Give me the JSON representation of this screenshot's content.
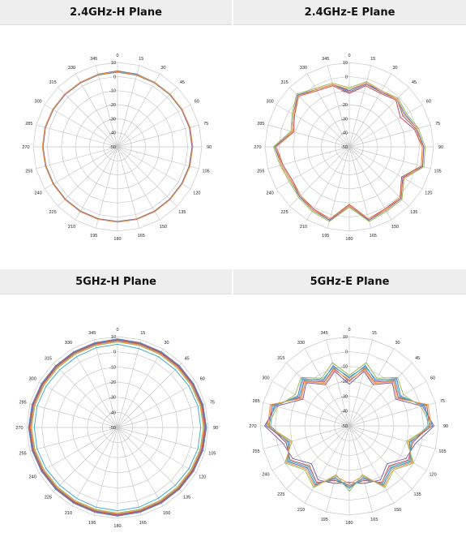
{
  "chart_data": [
    {
      "type": "polar-line",
      "title": "2.4GHz-H Plane",
      "angles": [
        0,
        15,
        30,
        45,
        60,
        75,
        90,
        105,
        120,
        135,
        150,
        165,
        180,
        195,
        210,
        225,
        240,
        255,
        270,
        285,
        300,
        315,
        330,
        345
      ],
      "radial_ticks": [
        10,
        0,
        -10,
        -20,
        -30,
        -40,
        -50
      ],
      "rlim": [
        -50,
        10
      ],
      "angle_labels": [
        "0",
        "15",
        "30",
        "45",
        "60",
        "75",
        "90",
        "105",
        "120",
        "135",
        "150",
        "165",
        "180",
        "195",
        "210",
        "225",
        "240",
        "255",
        "270",
        "285",
        "300",
        "315",
        "330",
        "345"
      ],
      "radial_labels": [
        "10",
        "0",
        "-10",
        "-20",
        "-30",
        "-40",
        "-50"
      ],
      "series": [
        {
          "color": "#4f81bd",
          "values": [
            4,
            3.5,
            3,
            3,
            3.2,
            3.5,
            3.5,
            3.3,
            3,
            3,
            3.2,
            3.4,
            3.5,
            3.4,
            3.2,
            3,
            3,
            3.2,
            3.4,
            3.5,
            3.3,
            3.1,
            3,
            3.5
          ]
        },
        {
          "color": "#c0504d",
          "values": [
            3.5,
            3,
            2.8,
            2.8,
            3,
            3.2,
            3.3,
            3,
            2.8,
            2.8,
            3,
            3.2,
            3.3,
            3.1,
            3,
            2.8,
            2.8,
            3,
            3.2,
            3.2,
            3,
            2.9,
            2.8,
            3.2
          ]
        },
        {
          "color": "#9bbb59",
          "values": [
            3,
            2.6,
            2.4,
            2.5,
            2.7,
            2.9,
            3,
            2.8,
            2.6,
            2.5,
            2.7,
            3,
            3,
            2.9,
            2.7,
            2.5,
            2.5,
            2.7,
            3,
            3,
            2.8,
            2.6,
            2.5,
            2.8
          ]
        },
        {
          "color": "#8064a2",
          "values": [
            3.2,
            2.8,
            2.6,
            2.6,
            2.8,
            3,
            3.1,
            2.9,
            2.7,
            2.6,
            2.8,
            3.1,
            3.2,
            3,
            2.8,
            2.6,
            2.6,
            2.8,
            3.1,
            3.1,
            2.9,
            2.7,
            2.6,
            3
          ]
        },
        {
          "color": "#f79646",
          "values": [
            3.4,
            3,
            2.9,
            3,
            3.2,
            3.5,
            3.6,
            3.4,
            3.1,
            3,
            3.2,
            3.5,
            3.6,
            3.4,
            3.2,
            3,
            3,
            3.2,
            3.5,
            3.5,
            3.3,
            3.1,
            3,
            3.3
          ]
        }
      ]
    },
    {
      "type": "polar-line",
      "title": "2.4GHz-E Plane",
      "angles": [
        0,
        15,
        30,
        45,
        60,
        75,
        90,
        105,
        120,
        135,
        150,
        165,
        180,
        195,
        210,
        225,
        240,
        255,
        270,
        285,
        300,
        315,
        330,
        345
      ],
      "radial_ticks": [
        10,
        0,
        -10,
        -20,
        -30,
        -40,
        -50
      ],
      "rlim": [
        -50,
        10
      ],
      "angle_labels": [
        "0",
        "15",
        "30",
        "45",
        "60",
        "75",
        "90",
        "105",
        "120",
        "135",
        "150",
        "165",
        "180",
        "195",
        "210",
        "225",
        "240",
        "255",
        "270",
        "285",
        "300",
        "315",
        "330",
        "345"
      ],
      "radial_labels": [
        "10",
        "0",
        "-10",
        "-20",
        "-30",
        "-40",
        "-50"
      ],
      "series": [
        {
          "color": "#4f81bd",
          "values": [
            -10,
            -3,
            -5,
            -2,
            -4,
            0,
            3,
            4,
            -6,
            2,
            2,
            4,
            -8,
            4,
            2,
            0,
            -2,
            0,
            3,
            -8,
            -4,
            2,
            -3,
            -4
          ]
        },
        {
          "color": "#c0504d",
          "values": [
            -12,
            -5,
            -6,
            -3,
            -8,
            -2,
            2,
            3,
            -7,
            1,
            1,
            3,
            -9,
            3,
            1,
            -1,
            -3,
            -1,
            2,
            -9,
            -5,
            1,
            -4,
            -5
          ]
        },
        {
          "color": "#9bbb59",
          "values": [
            -8,
            -2,
            -4,
            -1,
            -3,
            1,
            4,
            5,
            -5,
            3,
            3,
            5,
            -7,
            5,
            3,
            1,
            -1,
            1,
            4,
            -7,
            -3,
            3,
            -2,
            -3
          ]
        },
        {
          "color": "#8064a2",
          "values": [
            -11,
            -4,
            -5,
            -2,
            -6,
            -1,
            3,
            4,
            -6,
            2,
            2,
            4,
            -8,
            4,
            2,
            0,
            -2,
            0,
            3,
            -8,
            -4,
            2,
            -3,
            -4
          ]
        },
        {
          "color": "#f79646",
          "values": [
            -9,
            -3,
            -4,
            -2,
            -5,
            0,
            2,
            3,
            -5,
            1,
            2,
            3,
            -8,
            3,
            2,
            -1,
            -2,
            0,
            2,
            -8,
            -4,
            1,
            -3,
            -4
          ]
        }
      ]
    },
    {
      "type": "polar-line",
      "title": "5GHz-H Plane",
      "angles": [
        0,
        15,
        30,
        45,
        60,
        75,
        90,
        105,
        120,
        135,
        150,
        165,
        180,
        195,
        210,
        225,
        240,
        255,
        270,
        285,
        300,
        315,
        330,
        345
      ],
      "radial_ticks": [
        10,
        0,
        -10,
        -20,
        -30,
        -40,
        -50
      ],
      "rlim": [
        -50,
        10
      ],
      "angle_labels": [
        "0",
        "15",
        "30",
        "45",
        "60",
        "75",
        "90",
        "105",
        "120",
        "135",
        "150",
        "165",
        "180",
        "195",
        "210",
        "225",
        "240",
        "255",
        "270",
        "285",
        "300",
        "315",
        "330",
        "345"
      ],
      "radial_labels": [
        "10",
        "0",
        "-10",
        "-20",
        "-30",
        "-40",
        "-50"
      ],
      "series": [
        {
          "color": "#4bacc6",
          "values": [
            5,
            4,
            4,
            4,
            4.5,
            5,
            5,
            5,
            4.5,
            4,
            4,
            4.5,
            5,
            4.5,
            4,
            4,
            4.5,
            5,
            5,
            5,
            4.5,
            4,
            4,
            4.5
          ]
        },
        {
          "color": "#9bbb59",
          "values": [
            6.5,
            6,
            5.8,
            5.8,
            6,
            6.5,
            6.8,
            6.5,
            6,
            5.8,
            5.8,
            6,
            6.5,
            6,
            5.8,
            5.8,
            6,
            6.5,
            6.8,
            6.5,
            6,
            5.8,
            5.8,
            6
          ]
        },
        {
          "color": "#8064a2",
          "values": [
            7.5,
            7,
            6.8,
            6.8,
            7,
            7.5,
            7.8,
            7.5,
            7,
            6.8,
            6.8,
            7,
            7.5,
            7,
            6.8,
            6.8,
            7,
            7.5,
            7.8,
            7.5,
            7,
            6.8,
            6.8,
            7
          ]
        },
        {
          "color": "#c0504d",
          "values": [
            8,
            7.5,
            7.3,
            7.3,
            7.5,
            8,
            8.3,
            8,
            7.5,
            7.3,
            7.3,
            7.5,
            8,
            7.5,
            7.3,
            7.3,
            7.5,
            8,
            8.3,
            8,
            7.5,
            7.3,
            7.3,
            7.5
          ]
        },
        {
          "color": "#4f81bd",
          "values": [
            8.5,
            8,
            7.8,
            7.8,
            8,
            8.5,
            8.8,
            8.5,
            8,
            7.8,
            7.8,
            8,
            8.5,
            8,
            7.8,
            7.8,
            8,
            8.5,
            8.8,
            8.5,
            8,
            7.8,
            7.8,
            8
          ]
        },
        {
          "color": "#f79646",
          "values": [
            7,
            6.5,
            6.3,
            6.3,
            6.5,
            7,
            7.3,
            7,
            6.5,
            6.3,
            6.3,
            6.5,
            7,
            6.5,
            6.3,
            6.3,
            6.5,
            7,
            7.3,
            7,
            6.5,
            6.3,
            6.3,
            6.5
          ]
        }
      ]
    },
    {
      "type": "polar-line",
      "title": "5GHz-E Plane",
      "angles": [
        0,
        15,
        30,
        45,
        60,
        75,
        90,
        105,
        120,
        135,
        150,
        165,
        180,
        195,
        210,
        225,
        240,
        255,
        270,
        285,
        300,
        315,
        330,
        345
      ],
      "radial_ticks": [
        10,
        0,
        -10,
        -20,
        -30,
        -40,
        -50
      ],
      "rlim": [
        -50,
        10
      ],
      "angle_labels": [
        "0",
        "15",
        "30",
        "45",
        "60",
        "75",
        "90",
        "105",
        "120",
        "135",
        "150",
        "165",
        "180",
        "195",
        "210",
        "225",
        "240",
        "255",
        "270",
        "285",
        "300",
        "315",
        "330",
        "345"
      ],
      "radial_labels": [
        "10",
        "0",
        "-10",
        "-20",
        "-30",
        "-40",
        "-50"
      ],
      "series": [
        {
          "color": "#4f81bd",
          "values": [
            -18,
            -8,
            -15,
            -5,
            -10,
            2,
            6,
            -8,
            -2,
            -10,
            -4,
            -14,
            -8,
            -14,
            -4,
            -10,
            -2,
            -8,
            6,
            2,
            -10,
            -5,
            -15,
            -8
          ]
        },
        {
          "color": "#c0504d",
          "values": [
            -20,
            -10,
            -16,
            -7,
            -12,
            4,
            4,
            -6,
            -4,
            -12,
            -6,
            -12,
            -10,
            -12,
            -6,
            -12,
            -4,
            -6,
            4,
            4,
            -12,
            -7,
            -16,
            -10
          ]
        },
        {
          "color": "#9bbb59",
          "values": [
            -16,
            -6,
            -13,
            -4,
            -8,
            0,
            5,
            -10,
            0,
            -8,
            -2,
            -16,
            -6,
            -16,
            -2,
            -8,
            0,
            -10,
            5,
            0,
            -8,
            -4,
            -13,
            -6
          ]
        },
        {
          "color": "#8064a2",
          "values": [
            -22,
            -12,
            -18,
            -9,
            -14,
            1,
            7,
            -4,
            -6,
            -14,
            -8,
            -10,
            -12,
            -10,
            -8,
            -14,
            -6,
            -4,
            7,
            1,
            -14,
            -9,
            -18,
            -12
          ]
        },
        {
          "color": "#4bacc6",
          "values": [
            -17,
            -9,
            -14,
            -6,
            -11,
            3,
            3,
            -7,
            -3,
            -11,
            -5,
            -13,
            -9,
            -13,
            -5,
            -11,
            -3,
            -7,
            3,
            3,
            -11,
            -6,
            -14,
            -9
          ]
        },
        {
          "color": "#f79646",
          "values": [
            -19,
            -11,
            -17,
            -8,
            -13,
            5,
            5,
            -9,
            -1,
            -9,
            -3,
            -15,
            -11,
            -15,
            -3,
            -9,
            -1,
            -9,
            5,
            5,
            -13,
            -8,
            -17,
            -11
          ]
        }
      ]
    }
  ]
}
